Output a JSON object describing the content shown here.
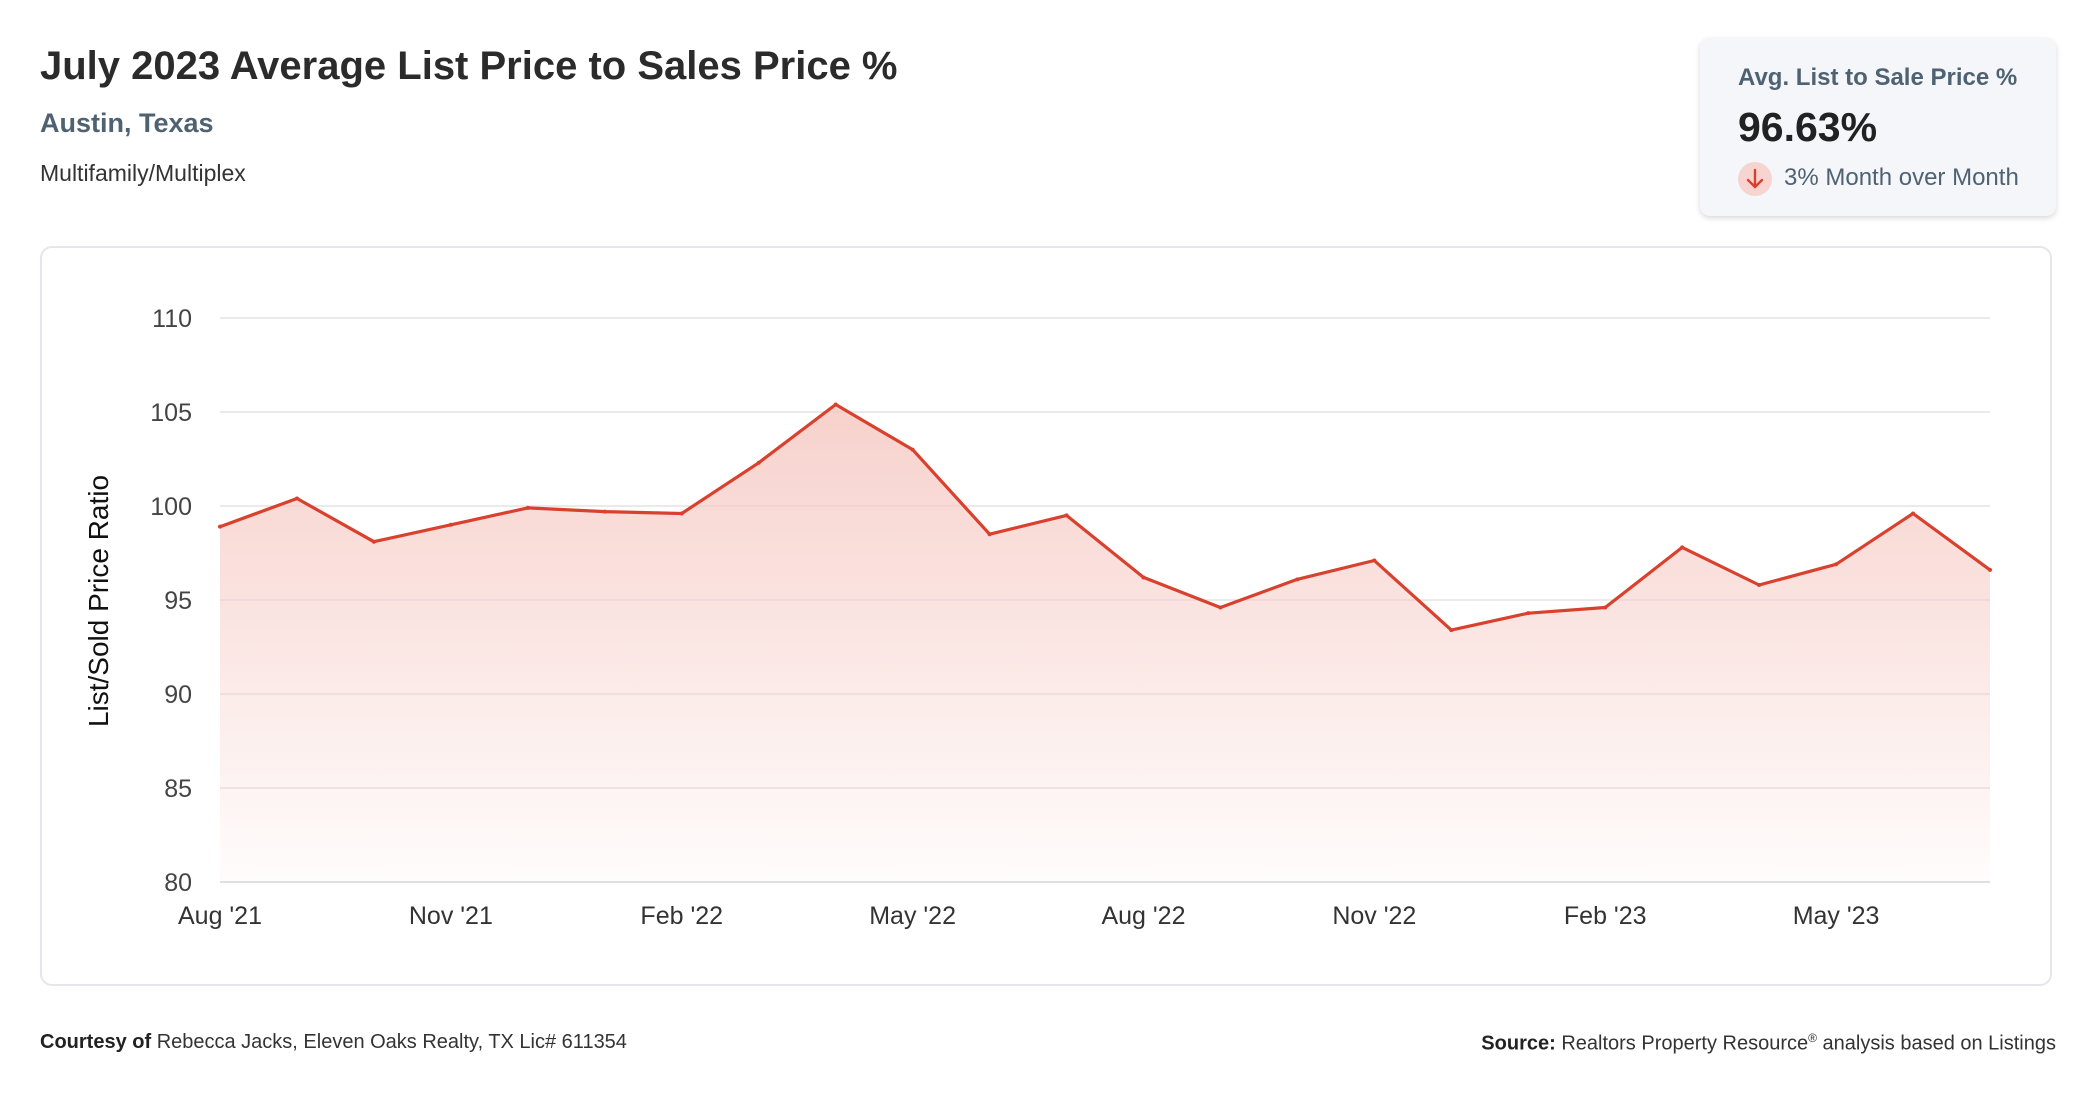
{
  "header": {
    "title": "July 2023 Average List Price to Sales Price %",
    "location": "Austin, Texas",
    "property_type": "Multifamily/Multiplex"
  },
  "kpi": {
    "label": "Avg. List to Sale Price %",
    "value": "96.63%",
    "change_text": "3% Month over Month",
    "change_direction": "down",
    "change_icon": "arrow-down-icon"
  },
  "footer": {
    "courtesy_label": "Courtesy of",
    "courtesy_text": "Rebecca Jacks, Eleven Oaks Realty, TX Lic# 611354",
    "source_label": "Source:",
    "source_text": "Realtors Property Resource",
    "source_mark": "®",
    "source_suffix": "analysis based on Listings"
  },
  "colors": {
    "line": "#d9412e",
    "fill": "#f6c9c3",
    "grid": "#e3e3e3",
    "accent_text": "#4f6272"
  },
  "chart_data": {
    "type": "area",
    "title": "",
    "xlabel": "",
    "ylabel": "List/Sold Price Ratio",
    "ylim": [
      80,
      110
    ],
    "yticks": [
      80,
      85,
      90,
      95,
      100,
      105,
      110
    ],
    "x_tick_labels": [
      "Aug '21",
      "Nov '21",
      "Feb '22",
      "May '22",
      "Aug '22",
      "Nov '22",
      "Feb '23",
      "May '23"
    ],
    "x": [
      "2021-08",
      "2021-09",
      "2021-10",
      "2021-11",
      "2021-12",
      "2022-01",
      "2022-02",
      "2022-03",
      "2022-04",
      "2022-05",
      "2022-06",
      "2022-07",
      "2022-08",
      "2022-09",
      "2022-10",
      "2022-11",
      "2022-12",
      "2023-01",
      "2023-02",
      "2023-03",
      "2023-04",
      "2023-05",
      "2023-06",
      "2023-07"
    ],
    "series": [
      {
        "values": [
          98.9,
          100.4,
          98.1,
          99.0,
          99.9,
          99.7,
          99.6,
          102.3,
          105.4,
          103.0,
          98.5,
          99.5,
          96.2,
          94.6,
          96.1,
          97.1,
          93.4,
          94.3,
          94.6,
          97.8,
          95.8,
          96.9,
          99.6,
          96.6
        ]
      }
    ],
    "grid": true,
    "legend": "none"
  }
}
